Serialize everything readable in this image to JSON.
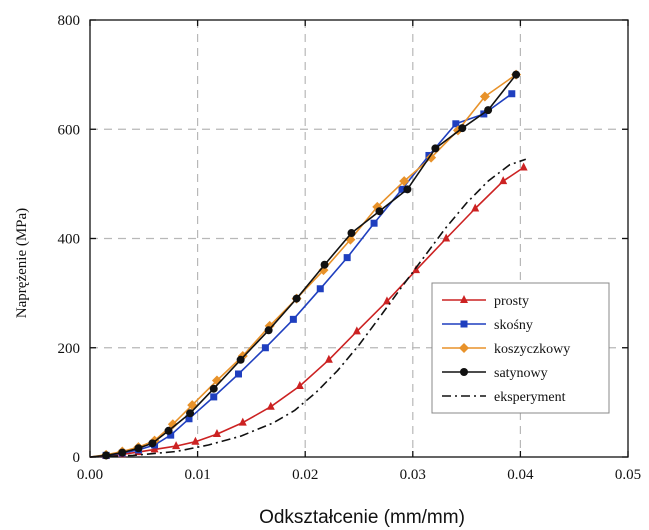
{
  "chart_data": {
    "type": "line",
    "xlabel": "Odkształcenie (mm/mm)",
    "ylabel": "Naprężenie (MPa)",
    "xlim": [
      0,
      0.05
    ],
    "ylim": [
      0,
      800
    ],
    "xticks": [
      "0.00",
      "0.01",
      "0.02",
      "0.03",
      "0.04",
      "0.05"
    ],
    "yticks": [
      "0",
      "200",
      "400",
      "600",
      "800"
    ],
    "xtick_values": [
      0,
      0.01,
      0.02,
      0.03,
      0.04,
      0.05
    ],
    "ytick_values": [
      0,
      200,
      400,
      600,
      800
    ],
    "grid": true,
    "legend_position": "bottom-right",
    "series": [
      {
        "name": "prosty",
        "color": "#cc2222",
        "marker": "triangle",
        "line": "solid",
        "x": [
          0,
          0.0015,
          0.003,
          0.0045,
          0.006,
          0.008,
          0.0098,
          0.0118,
          0.0142,
          0.0168,
          0.0195,
          0.0222,
          0.0248,
          0.0276,
          0.0303,
          0.0331,
          0.0358,
          0.0384,
          0.0403
        ],
        "y": [
          0,
          2,
          5,
          9,
          14,
          20,
          28,
          42,
          63,
          92,
          130,
          178,
          230,
          285,
          342,
          400,
          455,
          505,
          530
        ]
      },
      {
        "name": "skośny",
        "color": "#1f3fbf",
        "marker": "square",
        "line": "solid",
        "x": [
          0,
          0.0015,
          0.003,
          0.0045,
          0.006,
          0.0075,
          0.0092,
          0.0115,
          0.0138,
          0.0163,
          0.0189,
          0.0214,
          0.0239,
          0.0264,
          0.029,
          0.0315,
          0.034,
          0.0366,
          0.0392
        ],
        "y": [
          0,
          3,
          7,
          13,
          22,
          40,
          70,
          110,
          152,
          200,
          252,
          308,
          365,
          428,
          490,
          552,
          610,
          628,
          665
        ]
      },
      {
        "name": "koszyczkowy",
        "color": "#e8922a",
        "marker": "diamond",
        "line": "solid",
        "x": [
          0,
          0.0015,
          0.003,
          0.0045,
          0.006,
          0.0077,
          0.0095,
          0.0118,
          0.0142,
          0.0167,
          0.0192,
          0.0217,
          0.0242,
          0.0267,
          0.0292,
          0.0317,
          0.0342,
          0.0367,
          0.0396
        ],
        "y": [
          0,
          4,
          10,
          18,
          30,
          60,
          95,
          140,
          185,
          240,
          290,
          342,
          398,
          458,
          505,
          548,
          598,
          660,
          700
        ]
      },
      {
        "name": "satynowy",
        "color": "#111111",
        "marker": "circle",
        "line": "solid",
        "x": [
          0,
          0.0015,
          0.003,
          0.0045,
          0.0058,
          0.0073,
          0.0093,
          0.0115,
          0.014,
          0.0166,
          0.0192,
          0.0218,
          0.0243,
          0.0269,
          0.0295,
          0.0321,
          0.0346,
          0.037,
          0.0396
        ],
        "y": [
          0,
          3,
          8,
          16,
          25,
          48,
          80,
          125,
          178,
          232,
          290,
          352,
          410,
          450,
          490,
          565,
          602,
          635,
          700
        ]
      },
      {
        "name": "eksperyment",
        "color": "#111111",
        "marker": "none",
        "line": "dashdot",
        "x": [
          0,
          0.004,
          0.008,
          0.011,
          0.014,
          0.017,
          0.019,
          0.021,
          0.023,
          0.025,
          0.027,
          0.029,
          0.031,
          0.033,
          0.035,
          0.037,
          0.039,
          0.0405
        ],
        "y": [
          0,
          3,
          10,
          22,
          38,
          62,
          85,
          118,
          158,
          205,
          258,
          312,
          365,
          418,
          465,
          505,
          535,
          545
        ]
      }
    ]
  }
}
